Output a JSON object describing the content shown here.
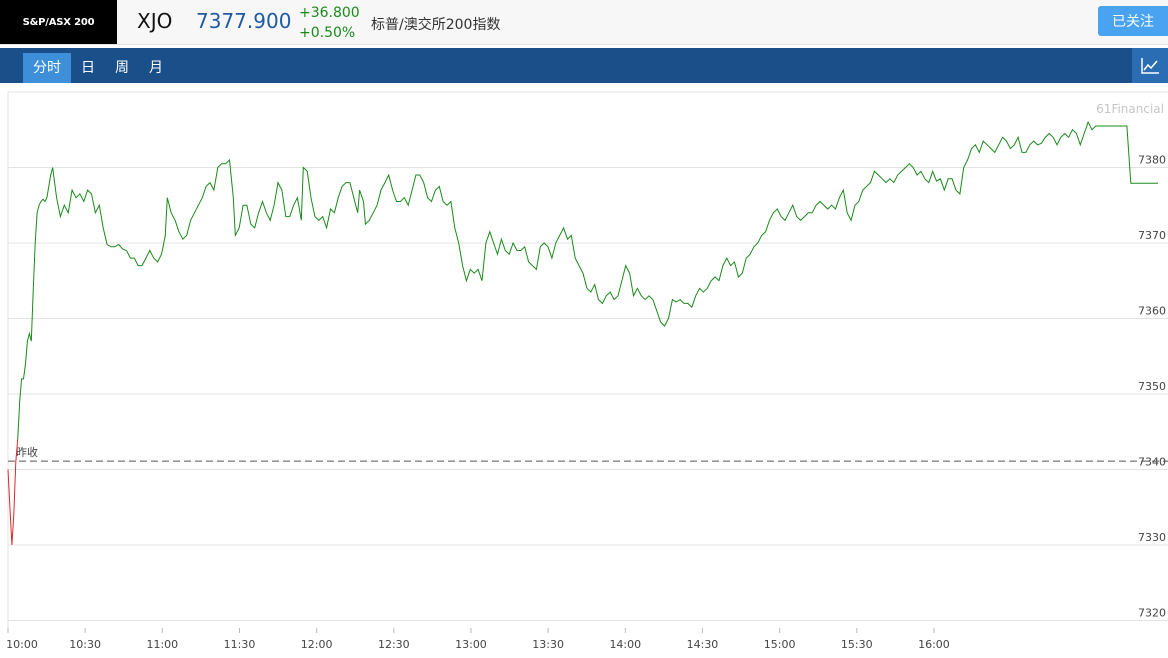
{
  "header": {
    "logo_text": "S&P/ASX 200",
    "symbol": "XJO",
    "price": "7377.900",
    "change": "+36.800",
    "change_pct": "+0.50%",
    "name": "标普/澳交所200指数",
    "follow_label": "已关注"
  },
  "tabs": [
    {
      "label": "分时",
      "active": true
    },
    {
      "label": "日",
      "active": false
    },
    {
      "label": "周",
      "active": false
    },
    {
      "label": "月",
      "active": false
    }
  ],
  "watermark": "61Financial",
  "prev_close_label": "昨收",
  "colors": {
    "up": "#1a8a1a",
    "down": "#e0262c",
    "price_blue": "#1f5aa5",
    "tab_bar": "#1b4f8a",
    "tab_active": "#3d8fd9"
  },
  "chart_data": {
    "type": "line",
    "x_ticks": [
      "10:00",
      "10:30",
      "11:00",
      "11:30",
      "12:00",
      "12:30",
      "13:00",
      "13:30",
      "14:00",
      "14:30",
      "15:00",
      "15:30",
      "16:00"
    ],
    "y_ticks": [
      "7320",
      "7330",
      "7340",
      "7350",
      "7360",
      "7370",
      "7380"
    ],
    "ylim": [
      7319,
      7390
    ],
    "xlim_minutes": [
      600,
      1037
    ],
    "prev_close": 7341.1,
    "grid": true,
    "series": [
      {
        "points": [
          [
            600,
            7340
          ],
          [
            601,
            7335
          ],
          [
            602,
            7330
          ],
          [
            603,
            7334
          ],
          [
            604,
            7341
          ],
          [
            605,
            7344
          ],
          [
            606,
            7349
          ],
          [
            607,
            7352
          ],
          [
            608,
            7352
          ],
          [
            609,
            7354
          ],
          [
            610,
            7357
          ],
          [
            611,
            7358
          ],
          [
            612,
            7357
          ],
          [
            613,
            7364
          ],
          [
            614,
            7370
          ],
          [
            615,
            7374
          ],
          [
            616,
            7375
          ],
          [
            617,
            7375.5
          ],
          [
            618,
            7375.8
          ],
          [
            619,
            7375.5
          ],
          [
            620,
            7376
          ],
          [
            622,
            7379
          ],
          [
            623,
            7380
          ],
          [
            624,
            7378
          ],
          [
            625,
            7376
          ],
          [
            627,
            7373.5
          ],
          [
            629,
            7375
          ],
          [
            631,
            7374
          ],
          [
            633,
            7377
          ],
          [
            635,
            7376
          ],
          [
            637,
            7376.5
          ],
          [
            639,
            7375.5
          ],
          [
            641,
            7377
          ],
          [
            643,
            7376.5
          ],
          [
            645,
            7374
          ],
          [
            647,
            7375
          ],
          [
            649,
            7372
          ],
          [
            651,
            7369.8
          ],
          [
            653,
            7369.5
          ],
          [
            655,
            7369.5
          ],
          [
            657,
            7369.8
          ],
          [
            659,
            7369.2
          ],
          [
            661,
            7369
          ],
          [
            663,
            7368
          ],
          [
            665,
            7368
          ],
          [
            667,
            7367
          ],
          [
            669,
            7367
          ],
          [
            671,
            7368
          ],
          [
            673,
            7369
          ],
          [
            675,
            7368
          ],
          [
            677,
            7367.5
          ],
          [
            679,
            7368.5
          ],
          [
            681,
            7371
          ],
          [
            682,
            7376
          ],
          [
            684,
            7374
          ],
          [
            686,
            7373
          ],
          [
            688,
            7371.5
          ],
          [
            690,
            7370.5
          ],
          [
            692,
            7371
          ],
          [
            694,
            7373
          ],
          [
            696,
            7374
          ],
          [
            698,
            7375
          ],
          [
            700,
            7376
          ],
          [
            702,
            7377.5
          ],
          [
            704,
            7378
          ],
          [
            706,
            7377
          ],
          [
            708,
            7380
          ],
          [
            710,
            7380.5
          ],
          [
            712,
            7380.5
          ],
          [
            714,
            7381
          ],
          [
            716,
            7376
          ],
          [
            717,
            7371
          ],
          [
            719,
            7372
          ],
          [
            721,
            7375
          ],
          [
            723,
            7375
          ],
          [
            725,
            7372.5
          ],
          [
            727,
            7372
          ],
          [
            729,
            7374
          ],
          [
            731,
            7375.5
          ],
          [
            733,
            7374
          ],
          [
            735,
            7373
          ],
          [
            737,
            7375
          ],
          [
            739,
            7378
          ],
          [
            741,
            7377
          ],
          [
            743,
            7373.5
          ],
          [
            745,
            7373.5
          ],
          [
            747,
            7375
          ],
          [
            749,
            7376
          ],
          [
            751,
            7373
          ],
          [
            752,
            7380
          ],
          [
            754,
            7379.5
          ],
          [
            756,
            7376
          ],
          [
            758,
            7373.5
          ],
          [
            760,
            7373
          ],
          [
            762,
            7373.5
          ],
          [
            764,
            7372
          ],
          [
            766,
            7374.5
          ],
          [
            768,
            7374
          ],
          [
            770,
            7376
          ],
          [
            772,
            7377.5
          ],
          [
            774,
            7378
          ],
          [
            776,
            7378
          ],
          [
            778,
            7376
          ],
          [
            780,
            7374
          ],
          [
            781,
            7377
          ],
          [
            783,
            7375.5
          ],
          [
            784,
            7372.5
          ],
          [
            786,
            7373
          ],
          [
            788,
            7374
          ],
          [
            790,
            7375
          ],
          [
            792,
            7377
          ],
          [
            794,
            7378
          ],
          [
            796,
            7379
          ],
          [
            798,
            7377
          ],
          [
            800,
            7375.5
          ],
          [
            802,
            7375.5
          ],
          [
            804,
            7376
          ],
          [
            806,
            7375
          ],
          [
            808,
            7377
          ],
          [
            810,
            7379
          ],
          [
            812,
            7379
          ],
          [
            814,
            7378
          ],
          [
            816,
            7376
          ],
          [
            818,
            7375.5
          ],
          [
            820,
            7377
          ],
          [
            822,
            7377.5
          ],
          [
            824,
            7375.5
          ],
          [
            826,
            7375
          ],
          [
            828,
            7375.5
          ],
          [
            830,
            7372
          ],
          [
            832,
            7370
          ],
          [
            834,
            7367
          ],
          [
            836,
            7365
          ],
          [
            838,
            7366.5
          ],
          [
            840,
            7366
          ],
          [
            842,
            7366.5
          ],
          [
            844,
            7365
          ],
          [
            846,
            7370
          ],
          [
            848,
            7371.5
          ],
          [
            850,
            7370
          ],
          [
            852,
            7368.5
          ],
          [
            854,
            7370.5
          ],
          [
            856,
            7369
          ],
          [
            858,
            7368.5
          ],
          [
            860,
            7370
          ],
          [
            862,
            7369
          ],
          [
            864,
            7369
          ],
          [
            866,
            7369.5
          ],
          [
            868,
            7367.5
          ],
          [
            870,
            7367
          ],
          [
            872,
            7366.5
          ],
          [
            874,
            7369.5
          ],
          [
            876,
            7370
          ],
          [
            878,
            7369.5
          ],
          [
            880,
            7368
          ],
          [
            882,
            7370
          ],
          [
            884,
            7371
          ],
          [
            886,
            7372
          ],
          [
            888,
            7370.5
          ],
          [
            890,
            7371
          ],
          [
            892,
            7368
          ],
          [
            894,
            7367
          ],
          [
            896,
            7366
          ],
          [
            898,
            7364
          ],
          [
            900,
            7363.5
          ],
          [
            902,
            7364.5
          ],
          [
            904,
            7362.5
          ],
          [
            906,
            7362
          ],
          [
            908,
            7363
          ],
          [
            910,
            7363.5
          ],
          [
            912,
            7362.5
          ],
          [
            914,
            7363
          ],
          [
            916,
            7365
          ],
          [
            918,
            7367
          ],
          [
            920,
            7366
          ],
          [
            922,
            7363
          ],
          [
            924,
            7364
          ],
          [
            926,
            7363
          ],
          [
            928,
            7362.5
          ],
          [
            930,
            7363
          ],
          [
            932,
            7362.5
          ],
          [
            934,
            7361
          ],
          [
            936,
            7359.5
          ],
          [
            938,
            7359
          ],
          [
            940,
            7360
          ],
          [
            942,
            7362.5
          ],
          [
            944,
            7362.2
          ],
          [
            946,
            7362.5
          ],
          [
            948,
            7362
          ],
          [
            950,
            7362
          ],
          [
            952,
            7361.5
          ],
          [
            954,
            7363
          ],
          [
            956,
            7364
          ],
          [
            958,
            7363.5
          ],
          [
            960,
            7364
          ],
          [
            962,
            7365
          ],
          [
            964,
            7365.5
          ],
          [
            966,
            7365
          ],
          [
            968,
            7367
          ],
          [
            970,
            7368
          ],
          [
            972,
            7367
          ],
          [
            974,
            7367.5
          ],
          [
            976,
            7365.5
          ],
          [
            978,
            7366
          ],
          [
            980,
            7368
          ],
          [
            982,
            7368.5
          ],
          [
            984,
            7369.5
          ],
          [
            986,
            7370
          ],
          [
            988,
            7371
          ],
          [
            990,
            7371.5
          ],
          [
            992,
            7373
          ],
          [
            994,
            7374
          ],
          [
            996,
            7374.5
          ],
          [
            998,
            7373.5
          ],
          [
            1000,
            7373
          ],
          [
            1002,
            7374
          ],
          [
            1004,
            7375
          ],
          [
            1006,
            7373.5
          ],
          [
            1008,
            7373
          ],
          [
            1010,
            7373.5
          ],
          [
            1012,
            7374
          ],
          [
            1014,
            7374
          ],
          [
            1016,
            7375
          ],
          [
            1018,
            7375.5
          ],
          [
            1020,
            7375
          ],
          [
            1022,
            7374.5
          ],
          [
            1024,
            7375
          ],
          [
            1026,
            7374.5
          ],
          [
            1028,
            7376
          ],
          [
            1030,
            7377
          ],
          [
            1032,
            7374
          ],
          [
            1034,
            7373
          ],
          [
            1036,
            7375
          ],
          [
            1038,
            7375.5
          ],
          [
            1040,
            7377
          ],
          [
            1042,
            7377.5
          ],
          [
            1044,
            7378
          ],
          [
            1046,
            7379.5
          ],
          [
            1048,
            7379
          ],
          [
            1050,
            7378.5
          ],
          [
            1052,
            7378
          ],
          [
            1054,
            7378.5
          ],
          [
            1056,
            7378
          ],
          [
            1058,
            7379
          ],
          [
            1060,
            7379.5
          ],
          [
            1062,
            7380
          ],
          [
            1064,
            7380.5
          ],
          [
            1066,
            7380
          ],
          [
            1068,
            7379
          ],
          [
            1070,
            7379.5
          ],
          [
            1072,
            7378.5
          ],
          [
            1074,
            7378
          ],
          [
            1076,
            7379.5
          ],
          [
            1078,
            7378.2
          ],
          [
            1080,
            7378.5
          ],
          [
            1082,
            7377
          ],
          [
            1084,
            7378.5
          ],
          [
            1086,
            7378.5
          ],
          [
            1088,
            7377
          ],
          [
            1090,
            7376.5
          ],
          [
            1092,
            7380
          ],
          [
            1094,
            7381
          ],
          [
            1096,
            7382.5
          ],
          [
            1098,
            7383
          ],
          [
            1100,
            7382
          ],
          [
            1102,
            7383.5
          ],
          [
            1104,
            7383
          ],
          [
            1106,
            7382.5
          ],
          [
            1108,
            7382
          ],
          [
            1110,
            7383
          ],
          [
            1112,
            7384
          ],
          [
            1114,
            7383.5
          ],
          [
            1116,
            7382.5
          ],
          [
            1118,
            7383
          ],
          [
            1120,
            7384
          ],
          [
            1122,
            7382
          ],
          [
            1124,
            7382
          ],
          [
            1126,
            7383
          ],
          [
            1128,
            7383.5
          ],
          [
            1130,
            7383
          ],
          [
            1132,
            7383.2
          ],
          [
            1134,
            7384
          ],
          [
            1136,
            7384.5
          ],
          [
            1138,
            7384
          ],
          [
            1140,
            7383
          ],
          [
            1142,
            7384
          ],
          [
            1144,
            7384.5
          ],
          [
            1146,
            7384
          ],
          [
            1148,
            7385
          ],
          [
            1150,
            7384.5
          ],
          [
            1152,
            7383
          ],
          [
            1154,
            7384.5
          ],
          [
            1156,
            7386
          ],
          [
            1158,
            7385
          ],
          [
            1160,
            7385.5
          ],
          [
            1162,
            7385.5
          ],
          [
            1164,
            7385.5
          ],
          [
            1166,
            7385.5
          ],
          [
            1168,
            7385.5
          ],
          [
            1170,
            7385.5
          ],
          [
            1172,
            7385.5
          ],
          [
            1174,
            7385.5
          ],
          [
            1176,
            7385.5
          ],
          [
            1178,
            7377.9
          ],
          [
            1180,
            7377.9
          ],
          [
            1182,
            7377.9
          ],
          [
            1184,
            7377.9
          ],
          [
            1186,
            7377.9
          ],
          [
            1188,
            7377.9
          ],
          [
            1190,
            7377.9
          ],
          [
            1192,
            7377.9
          ]
        ]
      }
    ]
  }
}
